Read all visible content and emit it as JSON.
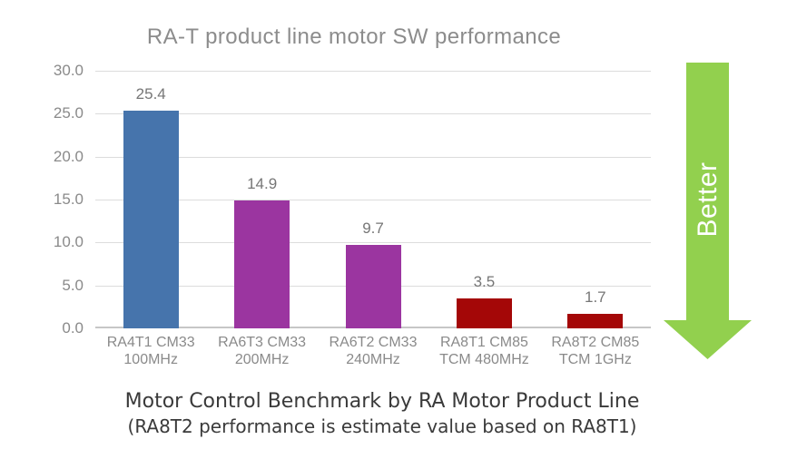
{
  "title": "RA-T product line motor SW performance",
  "better_arrow": {
    "label": "Better",
    "direction": "down",
    "arrow_color": "#92D04E",
    "text_color": "#FFFFFF"
  },
  "caption": {
    "line1": "Motor Control Benchmark by RA Motor Product Line",
    "line2": "(RA8T2 performance is estimate value based on RA8T1)"
  },
  "colors": {
    "background": "#FFFFFF",
    "title_text": "#8C8C8C",
    "tick_text": "#8A8A8A",
    "value_label_text": "#767676",
    "caption_text": "#3A3A3A",
    "gridline": "#DCDCDC",
    "axis_line": "#C6C6C6"
  },
  "chart_data": {
    "type": "bar",
    "title": "RA-T product line motor SW performance",
    "categories": [
      "RA4T1 CM33 100MHz",
      "RA6T3 CM33 200MHz",
      "RA6T2 CM33 240MHz",
      "RA8T1 CM85 TCM 480MHz",
      "RA8T2 CM85 TCM 1GHz"
    ],
    "category_lines": [
      [
        "RA4T1 CM33",
        "100MHz"
      ],
      [
        "RA6T3 CM33",
        "200MHz"
      ],
      [
        "RA6T2 CM33",
        "240MHz"
      ],
      [
        "RA8T1 CM85",
        "TCM 480MHz"
      ],
      [
        "RA8T2 CM85",
        "TCM 1GHz"
      ]
    ],
    "values": [
      25.4,
      14.9,
      9.7,
      3.5,
      1.7
    ],
    "value_labels": [
      "25.4",
      "14.9",
      "9.7",
      "3.5",
      "1.7"
    ],
    "bar_colors": [
      "#4674AC",
      "#9B35A0",
      "#9B35A0",
      "#A40707",
      "#A40707"
    ],
    "xlabel": "",
    "ylabel": "",
    "ylim": [
      0,
      30
    ],
    "ytick_values": [
      30,
      25,
      20,
      15,
      10,
      5,
      0
    ],
    "ytick_labels": [
      "30.0",
      "25.0",
      "20.0",
      "15.0",
      "10.0",
      "5.0",
      "0.0"
    ],
    "grid": true,
    "legend_position": "none",
    "annotation": "green downward arrow labeled Better (lower values are better)"
  }
}
